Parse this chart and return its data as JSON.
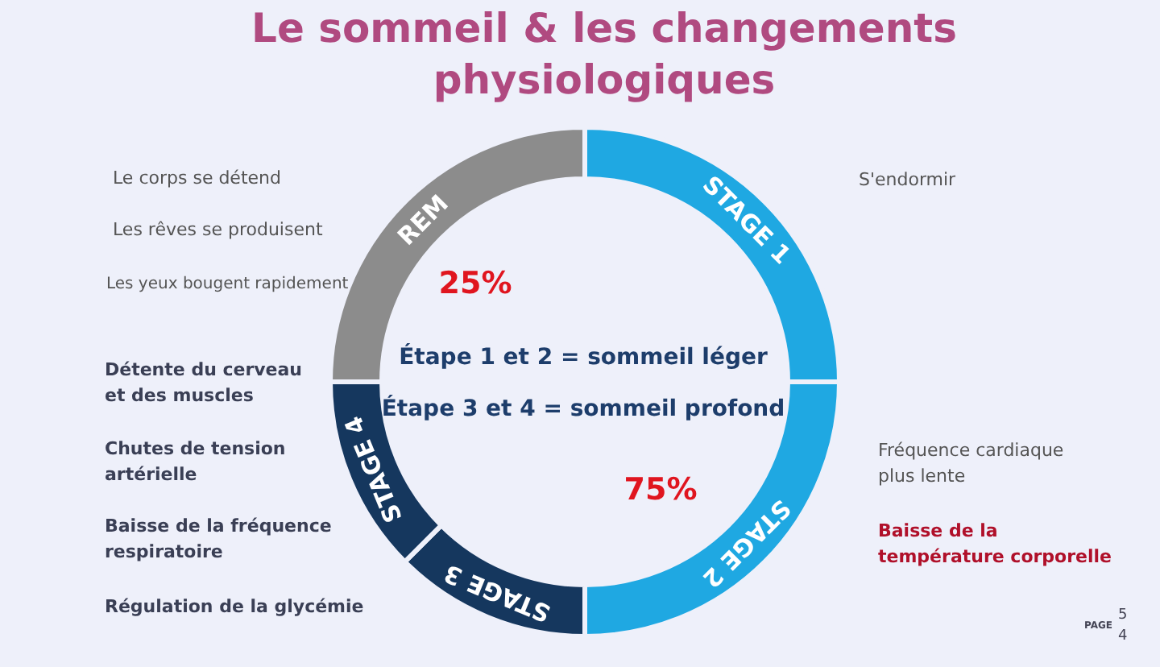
{
  "chart_data": {
    "type": "donut",
    "title": "Le sommeil & les changements\nphysiologiques",
    "categories": [
      "REM",
      "STAGE 1",
      "STAGE 2",
      "STAGE 3",
      "STAGE 4"
    ],
    "values": [
      25,
      25,
      25,
      12.5,
      12.5
    ],
    "colors": [
      "#8c8c8c",
      "#1fa8e2",
      "#1fa8e2",
      "#15375e",
      "#15375e"
    ],
    "annotations": [
      "25%",
      "75%",
      "Étape 1 et 2 = sommeil léger",
      "Étape 3 et 4 = sommeil profond",
      "Le corps se détend",
      "Les rêves se produisent",
      "Les yeux bougent rapidement",
      "Détente du cerveau\net des muscles",
      "Chutes de tension\nartérielle",
      "Baisse de la fréquence\nrespiratoire",
      "Régulation de la glycémie",
      "S'endormir",
      "Fréquence cardiaque\nplus lente",
      "Baisse de la\ntempérature corporelle",
      "PAGE",
      "5\n4"
    ]
  }
}
